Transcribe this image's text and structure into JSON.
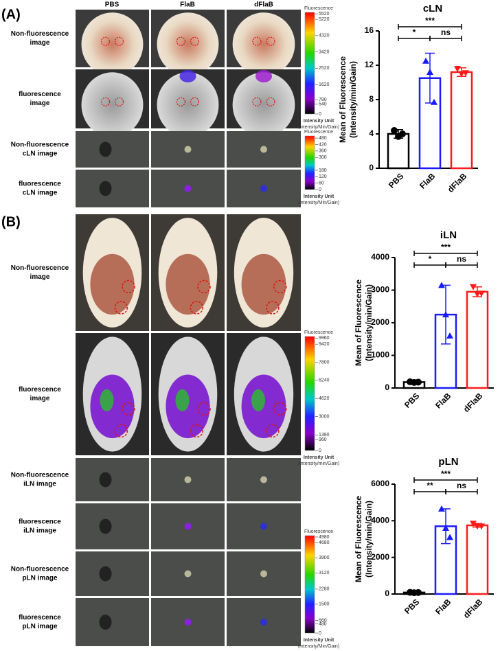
{
  "panel_labels": [
    "(A)",
    "(B)"
  ],
  "column_headers": [
    "PBS",
    "FlaB",
    "dFlaB"
  ],
  "rows_a": [
    [
      "Non-fluorescence",
      "image"
    ],
    [
      "fluorescence",
      "image"
    ],
    [
      "Non-fluorescence",
      "cLN image"
    ],
    [
      "fluorescence",
      "cLN image"
    ]
  ],
  "rows_b": [
    [
      "Non-fluorescence",
      "image"
    ],
    [
      "fluorescence",
      "image"
    ],
    [
      "Non-fluorescence",
      "iLN image"
    ],
    [
      "fluorescence",
      "iLN image"
    ],
    [
      "Non-fluorescence",
      "pLN image"
    ],
    [
      "fluorescence",
      "pLN image"
    ]
  ],
  "colorbars": [
    {
      "title": "Fluorescence",
      "unit": "Intensity Unit",
      "unit_detail": "(intensity/Min/Gain)",
      "range": [
        0,
        5600
      ],
      "ticks": [
        5520,
        5220,
        4320,
        3420,
        2520,
        1620,
        780,
        540,
        0
      ]
    },
    {
      "title": "Fluorescence",
      "unit": "Intensity Unit",
      "unit_detail": "(intensity/Min/Gain)",
      "range": [
        0,
        500
      ],
      "ticks": [
        480,
        420,
        360,
        300,
        180,
        120,
        60,
        0
      ]
    },
    {
      "title": "Fluorescence",
      "unit": "Intensity Unit",
      "unit_detail": "(intensity/min/Gain)",
      "range": [
        0,
        10100
      ],
      "ticks": [
        9960,
        9420,
        7800,
        6240,
        4620,
        3000,
        1380,
        960,
        0
      ]
    },
    {
      "title": "Fluorescence",
      "unit": "Intensity Unit",
      "unit_detail": "(intensity/Min/Gain)",
      "range": [
        0,
        5050
      ],
      "ticks": [
        4980,
        4680,
        3900,
        3120,
        2280,
        1500,
        660,
        480,
        0
      ]
    }
  ],
  "chart_data": [
    {
      "type": "bar",
      "title": "cLN",
      "ylabel": [
        "Mean of Fluorescence",
        "(Intensity/min/Gain)"
      ],
      "categories": [
        "PBS",
        "FlaB",
        "dFlaB"
      ],
      "colors": [
        "#000000",
        "#1a1aff",
        "#ff1a1a"
      ],
      "markers": [
        "circle",
        "triangle-up",
        "triangle-down"
      ],
      "values": [
        4.0,
        10.5,
        11.2
      ],
      "errors": [
        0.5,
        2.9,
        0.5
      ],
      "points": [
        [
          4.4,
          3.7,
          4.0
        ],
        [
          12.5,
          11.2,
          7.7
        ],
        [
          11.6,
          11.0,
          11.1
        ]
      ],
      "ylim": [
        0,
        16
      ],
      "yticks": [
        0,
        4,
        8,
        12,
        16
      ],
      "annotations": [
        {
          "text": "***",
          "between": [
            "PBS",
            "dFlaB"
          ]
        },
        {
          "text": "*",
          "between": [
            "PBS",
            "FlaB"
          ]
        },
        {
          "text": "ns",
          "between": [
            "FlaB",
            "dFlaB"
          ]
        }
      ]
    },
    {
      "type": "bar",
      "title": "iLN",
      "ylabel": [
        "Mean of Fluorescence",
        "(Intensity/min/Gain)"
      ],
      "categories": [
        "PBS",
        "FlaB",
        "dFlaB"
      ],
      "colors": [
        "#000000",
        "#1a1aff",
        "#ff1a1a"
      ],
      "markers": [
        "circle",
        "triangle-up",
        "triangle-down"
      ],
      "values": [
        180,
        2250,
        2950
      ],
      "errors": [
        30,
        900,
        150
      ],
      "points": [
        [
          190,
          170,
          180
        ],
        [
          3150,
          2250,
          1600
        ],
        [
          3100,
          2880,
          2900
        ]
      ],
      "ylim": [
        0,
        4000
      ],
      "yticks": [
        0,
        1000,
        2000,
        3000,
        4000
      ],
      "annotations": [
        {
          "text": "***",
          "between": [
            "PBS",
            "dFlaB"
          ]
        },
        {
          "text": "*",
          "between": [
            "PBS",
            "FlaB"
          ]
        },
        {
          "text": "ns",
          "between": [
            "FlaB",
            "dFlaB"
          ]
        }
      ]
    },
    {
      "type": "bar",
      "title": "pLN",
      "ylabel": [
        "Mean of Fluorescence",
        "(Intensity/min/Gain)"
      ],
      "categories": [
        "PBS",
        "FlaB",
        "dFlaB"
      ],
      "colors": [
        "#000000",
        "#1a1aff",
        "#ff1a1a"
      ],
      "markers": [
        "circle",
        "triangle-up",
        "triangle-down"
      ],
      "values": [
        80,
        3700,
        3750
      ],
      "errors": [
        20,
        950,
        100
      ],
      "points": [
        [
          90,
          70,
          80
        ],
        [
          4650,
          3600,
          3100
        ],
        [
          3850,
          3700,
          3700
        ]
      ],
      "ylim": [
        0,
        6000
      ],
      "yticks": [
        0,
        2000,
        4000,
        6000
      ],
      "annotations": [
        {
          "text": "***",
          "between": [
            "PBS",
            "dFlaB"
          ]
        },
        {
          "text": "**",
          "between": [
            "PBS",
            "FlaB"
          ]
        },
        {
          "text": "ns",
          "between": [
            "FlaB",
            "dFlaB"
          ]
        }
      ]
    }
  ]
}
